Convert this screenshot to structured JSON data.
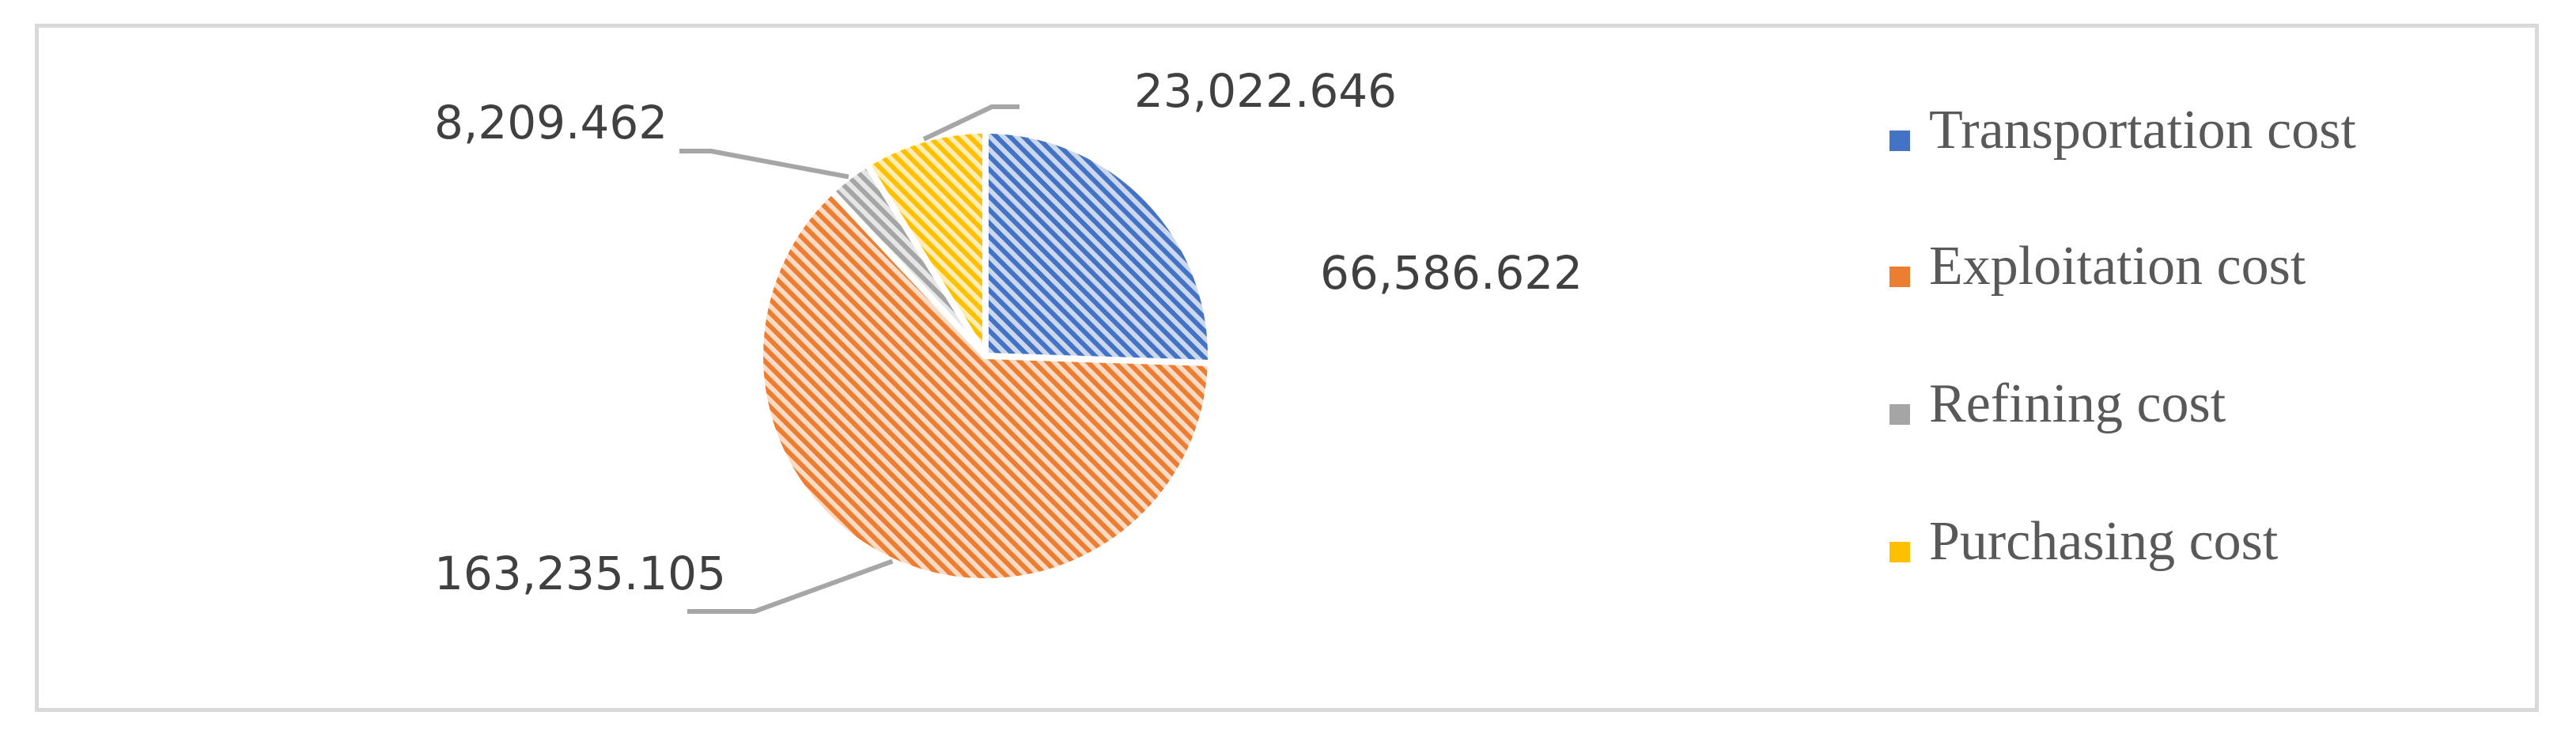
{
  "chart_data": {
    "type": "pie",
    "categories": [
      "Transportation cost",
      "Exploitation cost",
      "Refining cost",
      "Purchasing cost"
    ],
    "values": [
      66586.622,
      163235.105,
      8209.462,
      23022.646
    ],
    "data_labels": [
      "66,586.622",
      "163,235.105",
      "8,209.462",
      "23,022.646"
    ],
    "colors": [
      "#4472c4",
      "#ed7d31",
      "#a5a5a5",
      "#ffc000"
    ],
    "fill_pattern": "diagonal-hatch",
    "start_angle_deg": 0,
    "direction": "clockwise",
    "legend_position": "right"
  },
  "legend": {
    "items": [
      {
        "label": "Transportation cost",
        "color": "#4472c4"
      },
      {
        "label": "Exploitation cost",
        "color": "#ed7d31"
      },
      {
        "label": "Refining cost",
        "color": "#a5a5a5"
      },
      {
        "label": "Purchasing cost",
        "color": "#ffc000"
      }
    ]
  }
}
